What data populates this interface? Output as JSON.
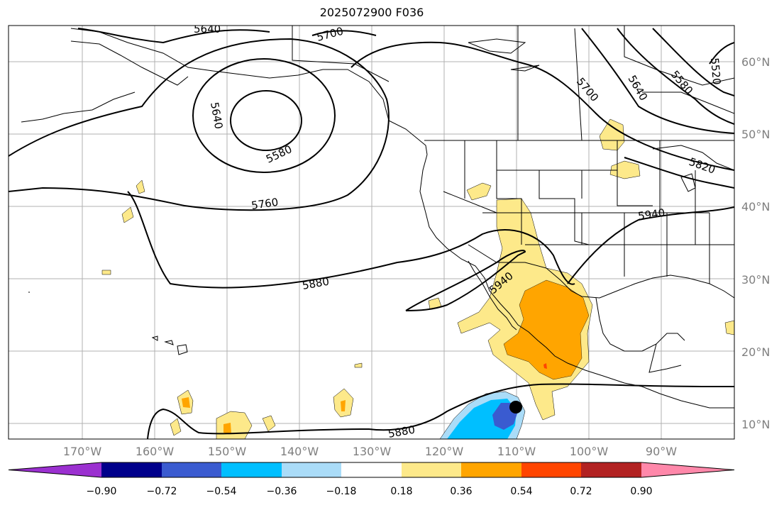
{
  "title": "2025072900 F036",
  "latitude_labels": [
    "60°N",
    "50°N",
    "40°N",
    "30°N",
    "20°N",
    "10°N"
  ],
  "longitude_labels": [
    "170°W",
    "160°W",
    "150°W",
    "140°W",
    "130°W",
    "120°W",
    "110°W",
    "100°W",
    "90°W"
  ],
  "contour_labels": [
    "5640",
    "5700",
    "5640",
    "5580",
    "5760",
    "5880",
    "5940",
    "5940",
    "5880",
    "5700",
    "5640",
    "5580",
    "5520",
    "5820"
  ],
  "colorbar": {
    "tick_labels": [
      "−0.90",
      "−0.72",
      "−0.54",
      "−0.36",
      "−0.18",
      "0.18",
      "0.36",
      "0.54",
      "0.72",
      "0.90"
    ],
    "colors": [
      "#9b30d0",
      "#00008b",
      "#3a5bd0",
      "#00bfff",
      "#aadcf8",
      "#ffffff",
      "#fde98a",
      "#ffa500",
      "#ff4500",
      "#b22222",
      "#ff88aa"
    ]
  },
  "colors": {
    "contour": "#000000",
    "grid": "#b0b0b0",
    "coast": "#000000",
    "light_positive": "#fde98a",
    "positive": "#ffa500",
    "strong_positive": "#ff4500",
    "light_negative": "#aadcf8",
    "negative": "#00bfff",
    "strong_negative": "#3a5bd0"
  }
}
